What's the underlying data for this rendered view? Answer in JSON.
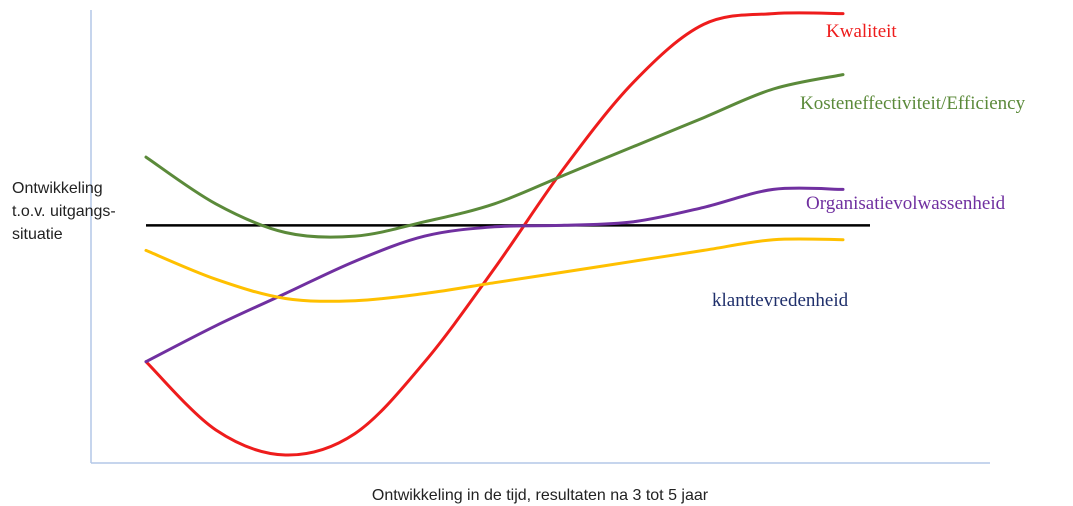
{
  "chart_data": {
    "type": "line",
    "title": "",
    "xlabel": "Ontwikkeling in de tijd, resultaten na 3 tot 5 jaar",
    "ylabel_lines": [
      "Ontwikkeling",
      "t.o.v. uitgangs-",
      "situatie"
    ],
    "baseline": {
      "value": 0,
      "color": "#000000"
    },
    "xlim": [
      0,
      10
    ],
    "ylim": [
      -3.2,
      3.0
    ],
    "grid": false,
    "legend": "none",
    "series": [
      {
        "name": "Kwaliteit",
        "color": "#ee1c1c",
        "x": [
          0,
          1,
          2,
          3,
          4,
          5,
          6,
          7,
          8,
          9,
          10
        ],
        "y": [
          -1.9,
          -2.85,
          -3.2,
          -2.9,
          -1.9,
          -0.6,
          0.8,
          2.0,
          2.8,
          2.95,
          2.95
        ]
      },
      {
        "name": "Kosteneffectiviteit/Efficiency",
        "color": "#5b8a3a",
        "x": [
          0,
          1,
          2,
          3,
          4,
          5,
          6,
          7,
          8,
          9,
          10
        ],
        "y": [
          0.95,
          0.3,
          -0.1,
          -0.15,
          0.05,
          0.3,
          0.7,
          1.1,
          1.5,
          1.9,
          2.1
        ]
      },
      {
        "name": "Organisatievolwassenheid",
        "color": "#7030a0",
        "x": [
          0,
          1,
          2,
          3,
          4,
          5,
          6,
          7,
          8,
          9,
          10
        ],
        "y": [
          -1.9,
          -1.4,
          -0.95,
          -0.5,
          -0.15,
          -0.02,
          0.0,
          0.05,
          0.25,
          0.5,
          0.5
        ]
      },
      {
        "name": "klanttevredenheid",
        "color": "#ffc000",
        "label_color": "#1f2f6b",
        "x": [
          0,
          1,
          2,
          3,
          4,
          5,
          6,
          7,
          8,
          9,
          10
        ],
        "y": [
          -0.35,
          -0.75,
          -1.02,
          -1.05,
          -0.95,
          -0.8,
          -0.65,
          -0.5,
          -0.35,
          -0.2,
          -0.2
        ]
      }
    ]
  }
}
